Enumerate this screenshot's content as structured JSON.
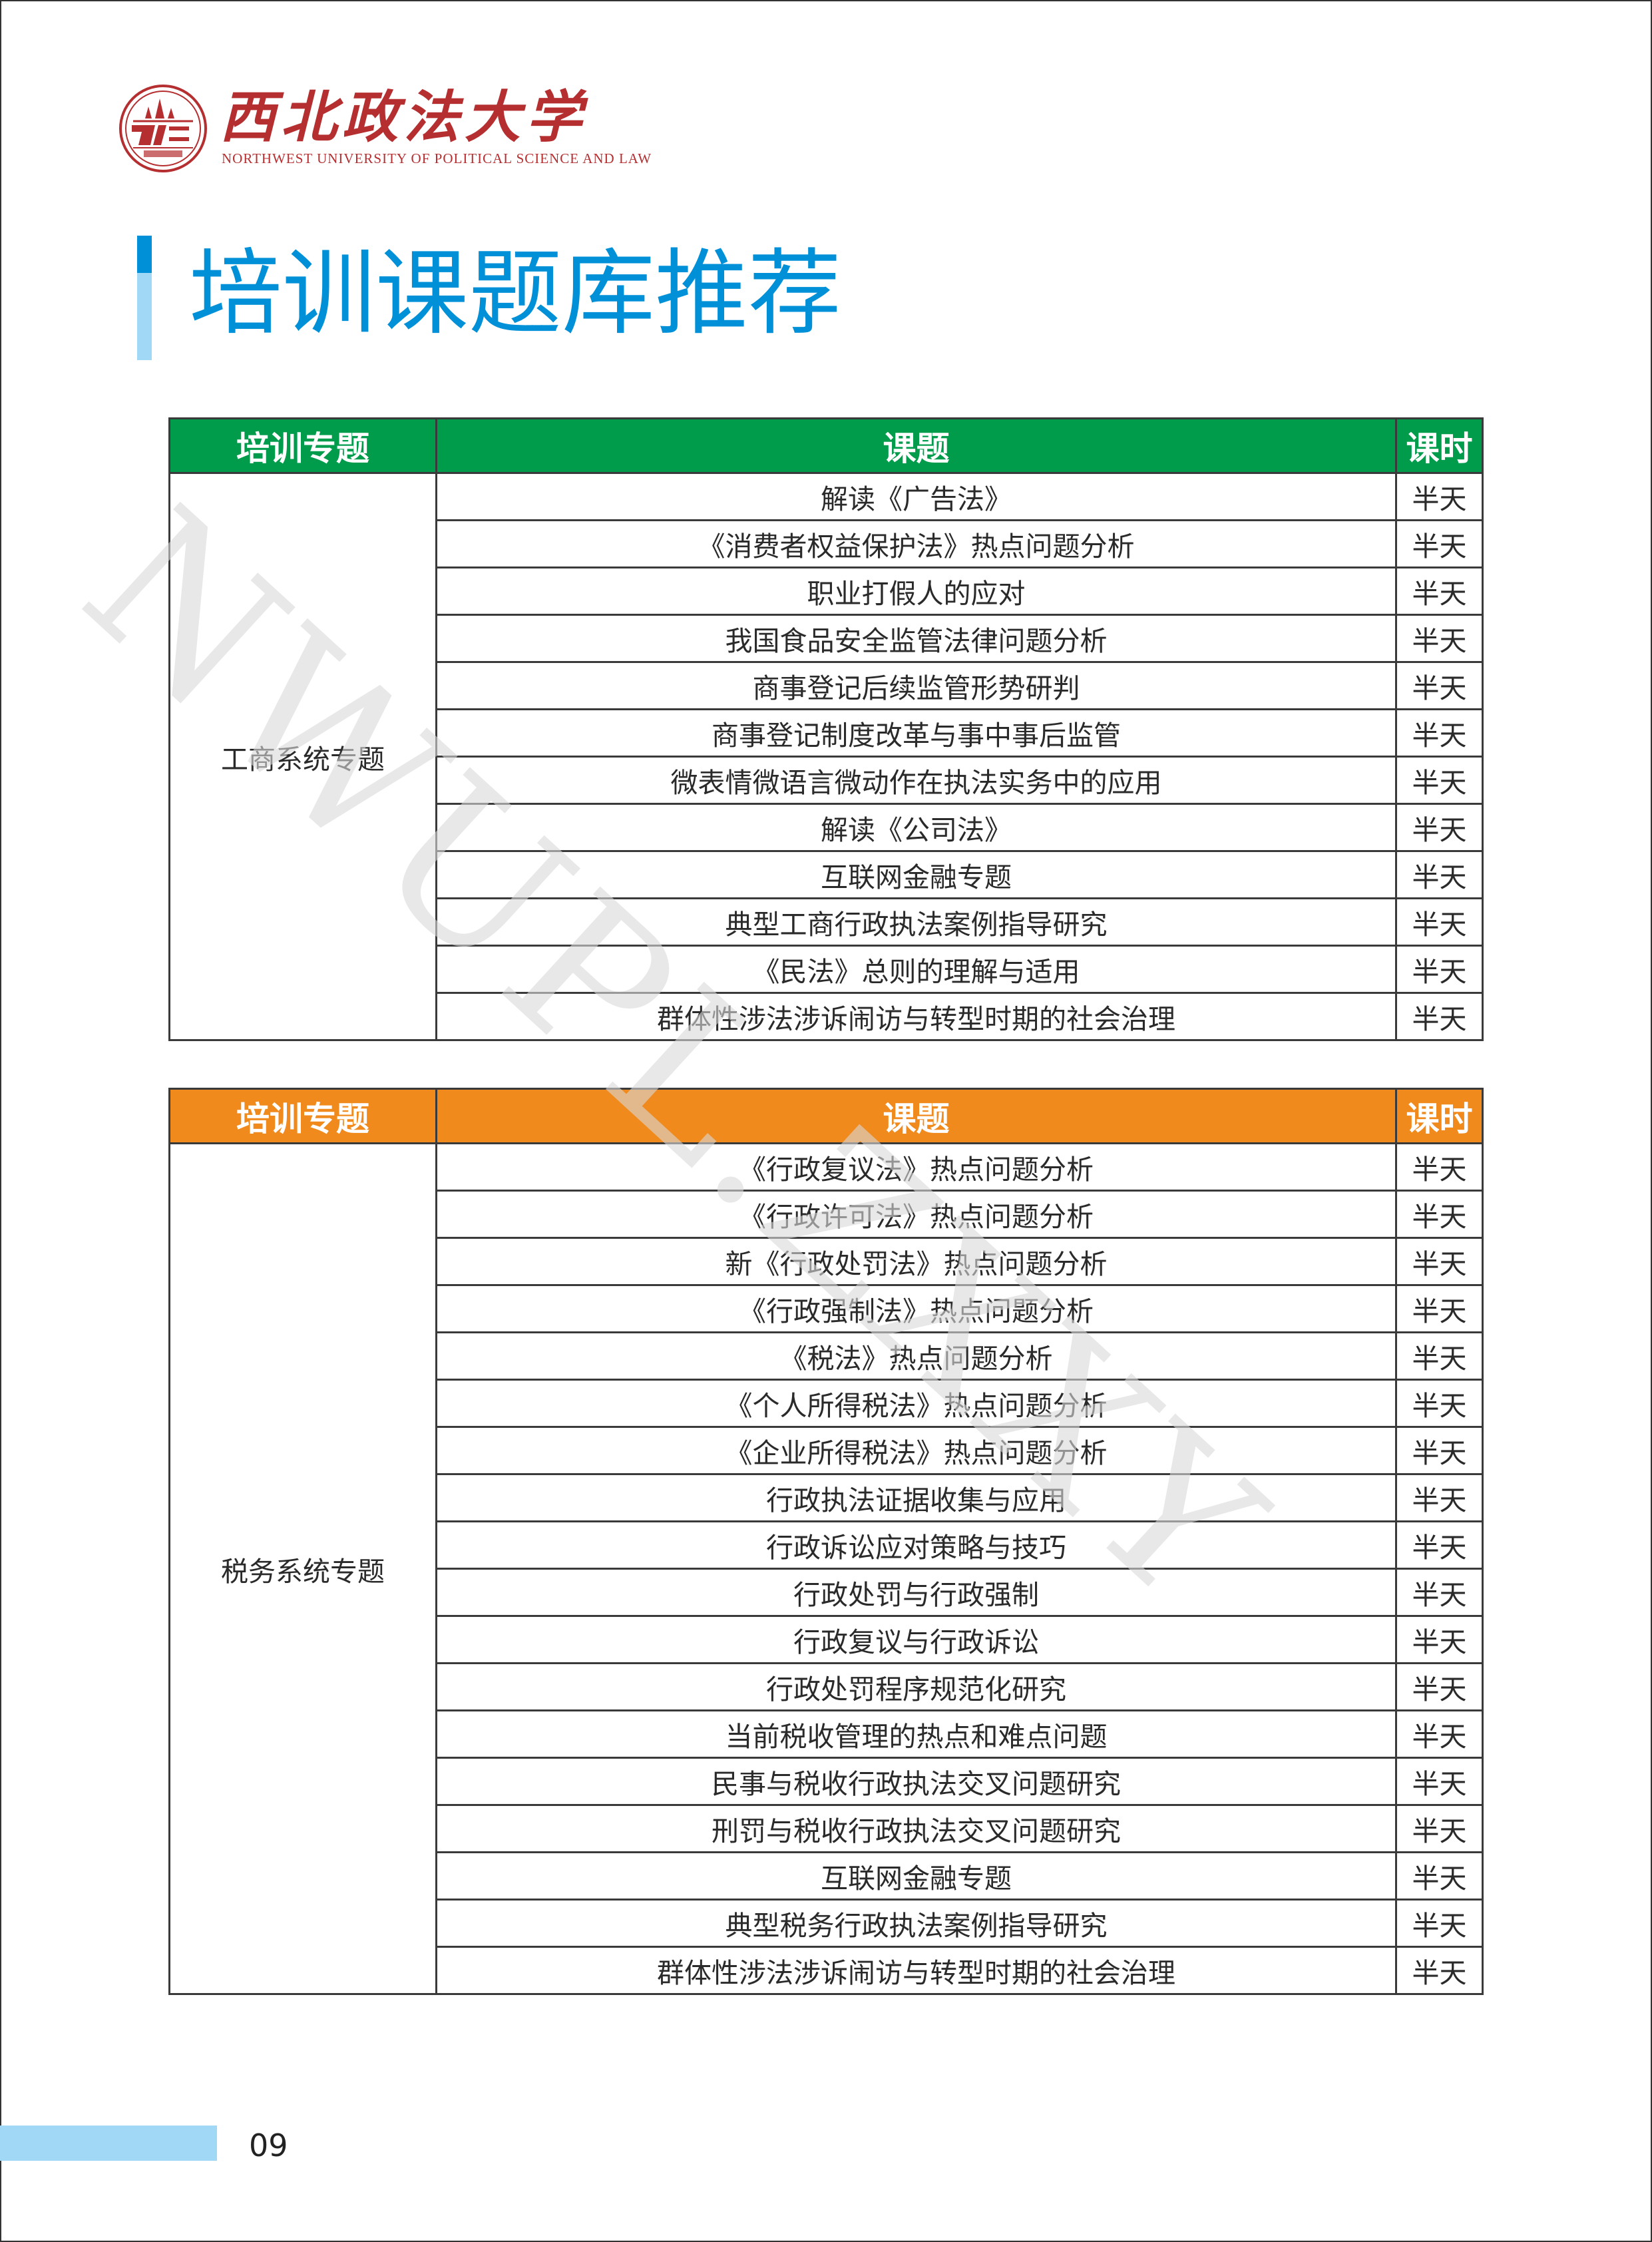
{
  "header": {
    "logo_cn": "西北政法大学",
    "logo_en": "NORTHWEST UNIVERSITY OF POLITICAL SCIENCE AND LAW",
    "title": "培训课题库推荐"
  },
  "watermark": "NWUPL.ZXXY",
  "colors": {
    "green": "#009c4c",
    "orange": "#f08a1c",
    "blue": "#0090d8",
    "light_blue": "#a0d8f5",
    "logo_red": "#b52f31"
  },
  "tables": [
    {
      "headers": [
        "培训专题",
        "课题",
        "课时"
      ],
      "category": "工商系统专题",
      "rows": [
        {
          "topic": "解读《广告法》",
          "hours": "半天"
        },
        {
          "topic": "《消费者权益保护法》热点问题分析",
          "hours": "半天"
        },
        {
          "topic": "职业打假人的应对",
          "hours": "半天"
        },
        {
          "topic": "我国食品安全监管法律问题分析",
          "hours": "半天"
        },
        {
          "topic": "商事登记后续监管形势研判",
          "hours": "半天"
        },
        {
          "topic": "商事登记制度改革与事中事后监管",
          "hours": "半天"
        },
        {
          "topic": "微表情微语言微动作在执法实务中的应用",
          "hours": "半天"
        },
        {
          "topic": "解读《公司法》",
          "hours": "半天"
        },
        {
          "topic": "互联网金融专题",
          "hours": "半天"
        },
        {
          "topic": "典型工商行政执法案例指导研究",
          "hours": "半天"
        },
        {
          "topic": "《民法》总则的理解与适用",
          "hours": "半天"
        },
        {
          "topic": "群体性涉法涉诉闹访与转型时期的社会治理",
          "hours": "半天"
        }
      ]
    },
    {
      "headers": [
        "培训专题",
        "课题",
        "课时"
      ],
      "category": "税务系统专题",
      "rows": [
        {
          "topic": "《行政复议法》热点问题分析",
          "hours": "半天"
        },
        {
          "topic": "《行政许可法》热点问题分析",
          "hours": "半天"
        },
        {
          "topic": "新《行政处罚法》热点问题分析",
          "hours": "半天"
        },
        {
          "topic": "《行政强制法》热点问题分析",
          "hours": "半天"
        },
        {
          "topic": "《税法》热点问题分析",
          "hours": "半天"
        },
        {
          "topic": "《个人所得税法》热点问题分析",
          "hours": "半天"
        },
        {
          "topic": "《企业所得税法》热点问题分析",
          "hours": "半天"
        },
        {
          "topic": "行政执法证据收集与应用",
          "hours": "半天"
        },
        {
          "topic": "行政诉讼应对策略与技巧",
          "hours": "半天"
        },
        {
          "topic": "行政处罚与行政强制",
          "hours": "半天"
        },
        {
          "topic": "行政复议与行政诉讼",
          "hours": "半天"
        },
        {
          "topic": "行政处罚程序规范化研究",
          "hours": "半天"
        },
        {
          "topic": "当前税收管理的热点和难点问题",
          "hours": "半天"
        },
        {
          "topic": "民事与税收行政执法交叉问题研究",
          "hours": "半天"
        },
        {
          "topic": "刑罚与税收行政执法交叉问题研究",
          "hours": "半天"
        },
        {
          "topic": "互联网金融专题",
          "hours": "半天"
        },
        {
          "topic": "典型税务行政执法案例指导研究",
          "hours": "半天"
        },
        {
          "topic": "群体性涉法涉诉闹访与转型时期的社会治理",
          "hours": "半天"
        }
      ]
    }
  ],
  "footer": {
    "page_number": "09"
  }
}
